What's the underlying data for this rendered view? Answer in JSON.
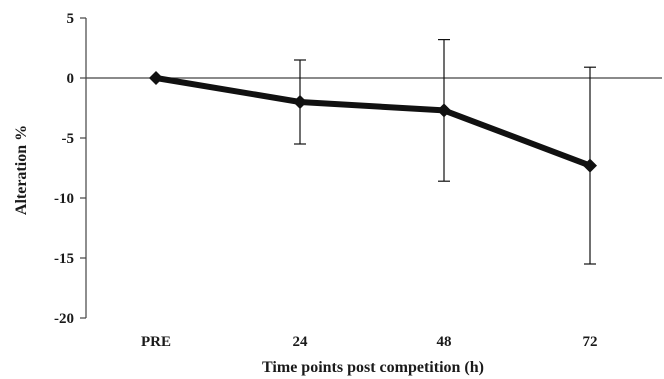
{
  "chart_data": {
    "type": "line",
    "xlabel": "Time points post competition (h)",
    "ylabel": "Alteration %",
    "categories": [
      "PRE",
      "24",
      "48",
      "72"
    ],
    "ylim": [
      -20,
      5
    ],
    "yticks": [
      5,
      0,
      -5,
      -10,
      -15,
      -20
    ],
    "series": [
      {
        "values": [
          0,
          -2.0,
          -2.7,
          -7.3
        ],
        "error": [
          0,
          3.5,
          5.9,
          8.2
        ]
      }
    ],
    "grid": false,
    "legend": "none",
    "colors": {
      "line": "#111111",
      "axis": "#444444"
    }
  }
}
